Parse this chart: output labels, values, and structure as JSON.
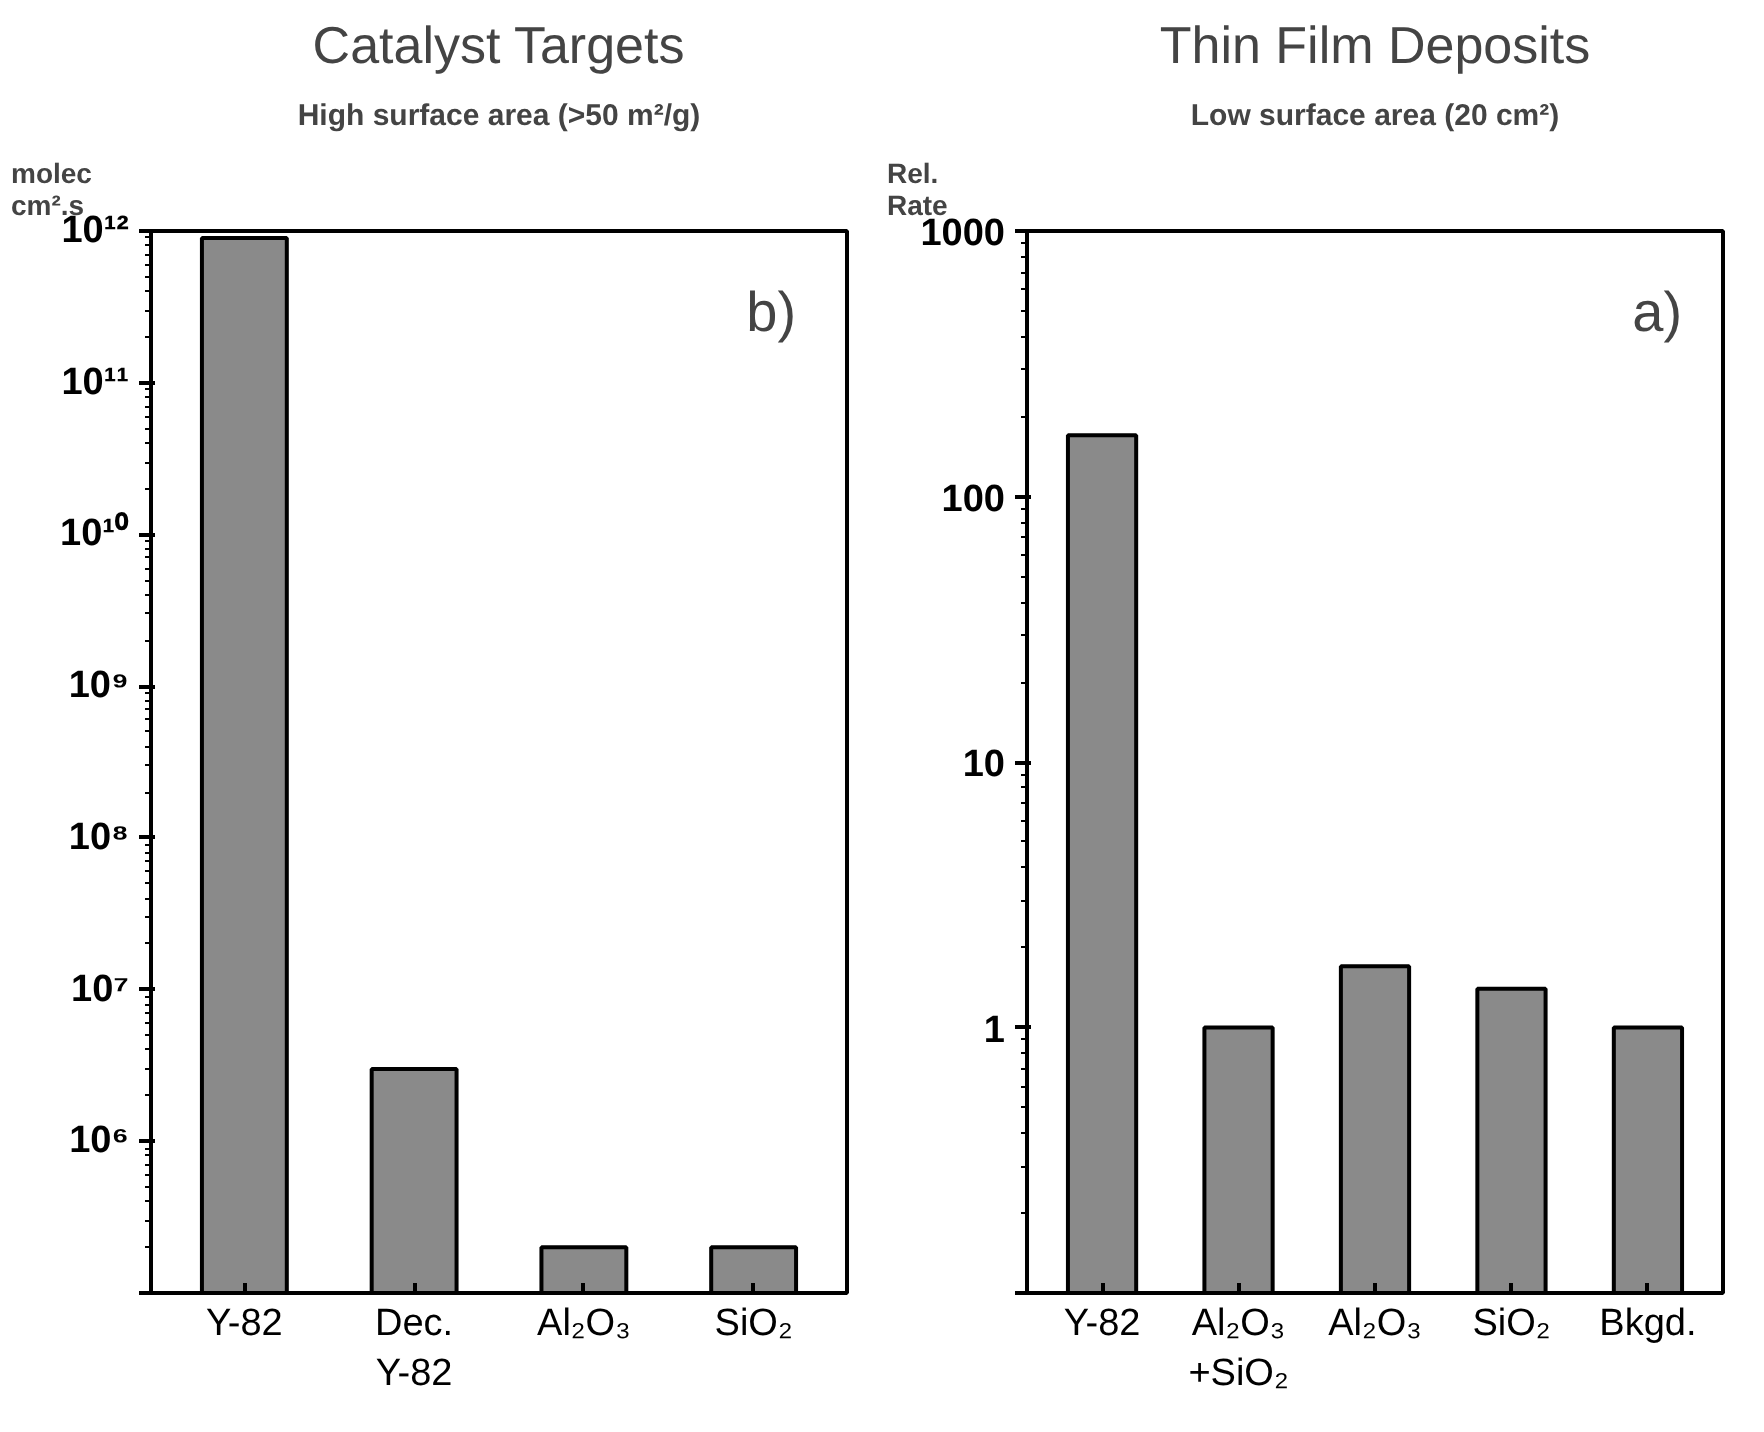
{
  "chart_data": [
    {
      "type": "bar",
      "title": "Catalyst Targets",
      "subtitle": "High surface area (>50 m²/g)",
      "ylabel": "molec\ncm².s",
      "categories": [
        "Y-82",
        "Dec.\nY-82",
        "Al₂O₃",
        "SiO₂"
      ],
      "values": [
        900000000000.0,
        3000000.0,
        200000.0,
        200000.0
      ],
      "color": "#8a8a8a",
      "log": true,
      "ylim": [
        100000.0,
        1000000000000.0
      ],
      "yticks": [
        {
          "value": 100000.0,
          "label": null
        },
        {
          "value": 1000000.0,
          "label": "10⁶"
        },
        {
          "value": 10000000.0,
          "label": "10⁷"
        },
        {
          "value": 100000000.0,
          "label": "10⁸"
        },
        {
          "value": 1000000000.0,
          "label": "10⁹"
        },
        {
          "value": 10000000000.0,
          "label": "10¹⁰"
        },
        {
          "value": 100000000000.0,
          "label": "10¹¹"
        },
        {
          "value": 1000000000000.0,
          "label": "10¹²"
        }
      ],
      "grid": false,
      "annotations": [
        "b)"
      ]
    },
    {
      "type": "bar",
      "title": "Thin Film Deposits",
      "subtitle": "Low surface area (20 cm²)",
      "ylabel": "Rel.\nRate",
      "categories": [
        "Y-82",
        "Al₂O₃\n+SiO₂",
        "Al₂O₃",
        "SiO₂",
        "Bkgd."
      ],
      "values": [
        170,
        1,
        1.7,
        1.4,
        1
      ],
      "color": "#8a8a8a",
      "log": true,
      "ylim": [
        0.1,
        1000
      ],
      "yticks": [
        {
          "value": 0.1,
          "label": null
        },
        1,
        10,
        100,
        1000
      ],
      "grid": false,
      "annotations": [
        "a)"
      ]
    }
  ]
}
